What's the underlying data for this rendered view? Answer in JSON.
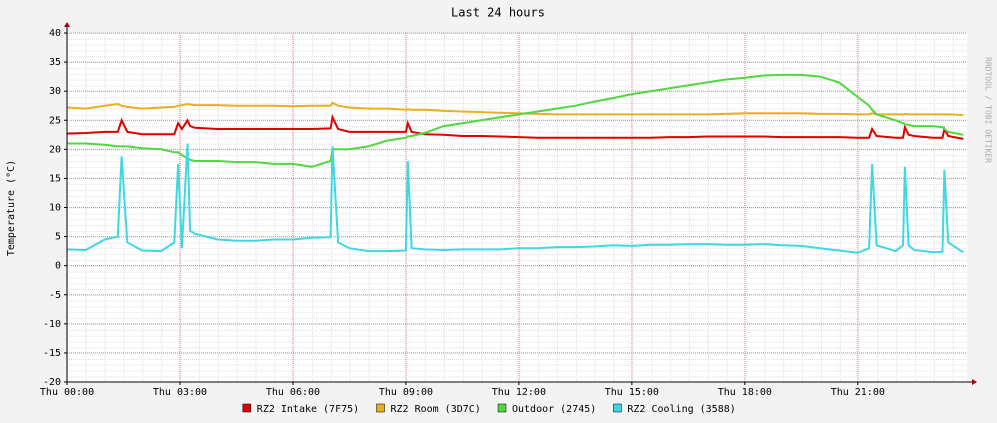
{
  "chart_data": {
    "type": "line",
    "title": "Last 24 hours",
    "y_label": "Temperature (°C)",
    "watermark": "RRDTOOL / TOBI OETIKER",
    "x": [
      0,
      0.5,
      1,
      1.35,
      1.45,
      1.6,
      2,
      2.5,
      2.85,
      2.95,
      3.05,
      3.2,
      3.27,
      3.4,
      4,
      4.5,
      5,
      5.5,
      6,
      6.5,
      7,
      7.05,
      7.2,
      7.5,
      8,
      8.5,
      9,
      9.05,
      9.15,
      9.5,
      10,
      10.5,
      11,
      11.5,
      12,
      12.5,
      13,
      13.5,
      14,
      14.5,
      15,
      15.5,
      16,
      16.5,
      17,
      17.5,
      18,
      18.5,
      19,
      19.5,
      20,
      20.5,
      21,
      21.3,
      21.38,
      21.5,
      22,
      22.2,
      22.25,
      22.35,
      22.5,
      23,
      23.25,
      23.3,
      23.4,
      23.8
    ],
    "series": [
      {
        "name": "RZ2 Intake (7F75)",
        "color": "#e00000",
        "values": [
          22.7,
          22.8,
          23,
          23,
          25,
          23,
          22.6,
          22.6,
          22.6,
          24.5,
          23.5,
          25,
          24,
          23.7,
          23.5,
          23.5,
          23.5,
          23.5,
          23.5,
          23.5,
          23.6,
          25.5,
          23.5,
          23,
          23,
          23,
          23,
          24.5,
          23,
          22.6,
          22.5,
          22.3,
          22.3,
          22.2,
          22.1,
          22,
          22,
          22,
          22,
          22,
          22,
          22,
          22.1,
          22.1,
          22.2,
          22.2,
          22.2,
          22.2,
          22.1,
          22.1,
          22.1,
          22.1,
          22,
          22,
          23.5,
          22.3,
          22,
          22,
          23.8,
          22.5,
          22.3,
          22,
          22,
          23.5,
          22.3,
          21.8
        ]
      },
      {
        "name": "RZ2 Room (3D7C)",
        "color": "#e8b020",
        "values": [
          27.2,
          27,
          27.5,
          27.8,
          27.5,
          27.3,
          27,
          27.2,
          27.3,
          27.5,
          27.6,
          27.8,
          27.7,
          27.6,
          27.6,
          27.5,
          27.5,
          27.5,
          27.4,
          27.5,
          27.5,
          28,
          27.5,
          27.2,
          27,
          27,
          26.8,
          26.9,
          26.8,
          26.8,
          26.6,
          26.5,
          26.4,
          26.3,
          26.2,
          26.1,
          26,
          26,
          26,
          26,
          26,
          26,
          26,
          26,
          26,
          26.1,
          26.2,
          26.2,
          26.2,
          26.2,
          26.1,
          26.1,
          26,
          26,
          26.2,
          26,
          26,
          26,
          26.1,
          26,
          26,
          26,
          26,
          26,
          26,
          25.9
        ]
      },
      {
        "name": "Outdoor (2745)",
        "color": "#50d840",
        "values": [
          21,
          21,
          20.8,
          20.5,
          20.5,
          20.5,
          20.2,
          20,
          19.5,
          19.5,
          19,
          18.5,
          18.2,
          18,
          18,
          17.8,
          17.8,
          17.5,
          17.5,
          17,
          18,
          20,
          20,
          20,
          20.5,
          21.5,
          22,
          22.2,
          22.3,
          22.8,
          24,
          24.5,
          25,
          25.5,
          26,
          26.5,
          27,
          27.5,
          28.2,
          28.8,
          29.5,
          30,
          30.5,
          31,
          31.5,
          32,
          32.3,
          32.7,
          32.8,
          32.8,
          32.5,
          31.5,
          29,
          27.5,
          26.8,
          26,
          25,
          24.5,
          24.3,
          24.2,
          24,
          24,
          23.8,
          23.5,
          23,
          22.5
        ]
      },
      {
        "name": "RZ2 Cooling (3588)",
        "color": "#40d8e0",
        "values": [
          2.8,
          2.7,
          4.5,
          5,
          18.8,
          4,
          2.6,
          2.5,
          4,
          17.5,
          3,
          21,
          6,
          5.5,
          4.5,
          4.3,
          4.3,
          4.5,
          4.5,
          4.8,
          4.9,
          20.5,
          4,
          3,
          2.5,
          2.5,
          2.6,
          18,
          3,
          2.8,
          2.7,
          2.8,
          2.8,
          2.8,
          3,
          3,
          3.2,
          3.2,
          3.3,
          3.5,
          3.4,
          3.6,
          3.6,
          3.7,
          3.7,
          3.6,
          3.6,
          3.7,
          3.5,
          3.4,
          3,
          2.6,
          2.2,
          3,
          17.5,
          3.5,
          2.5,
          3.5,
          17,
          3.5,
          2.7,
          2.3,
          2.4,
          16.5,
          4,
          2.3
        ]
      }
    ],
    "xlim": [
      0,
      23.9
    ],
    "ylim": [
      -20,
      40
    ],
    "xticks": [
      {
        "value": 0,
        "label": "Thu 00:00"
      },
      {
        "value": 3,
        "label": "Thu 03:00"
      },
      {
        "value": 6,
        "label": "Thu 06:00"
      },
      {
        "value": 9,
        "label": "Thu 09:00"
      },
      {
        "value": 12,
        "label": "Thu 12:00"
      },
      {
        "value": 15,
        "label": "Thu 15:00"
      },
      {
        "value": 18,
        "label": "Thu 18:00"
      },
      {
        "value": 21,
        "label": "Thu 21:00"
      }
    ],
    "yticks": [
      -20,
      -15,
      -10,
      -5,
      0,
      5,
      10,
      15,
      20,
      25,
      30,
      35,
      40
    ],
    "grid": true
  }
}
